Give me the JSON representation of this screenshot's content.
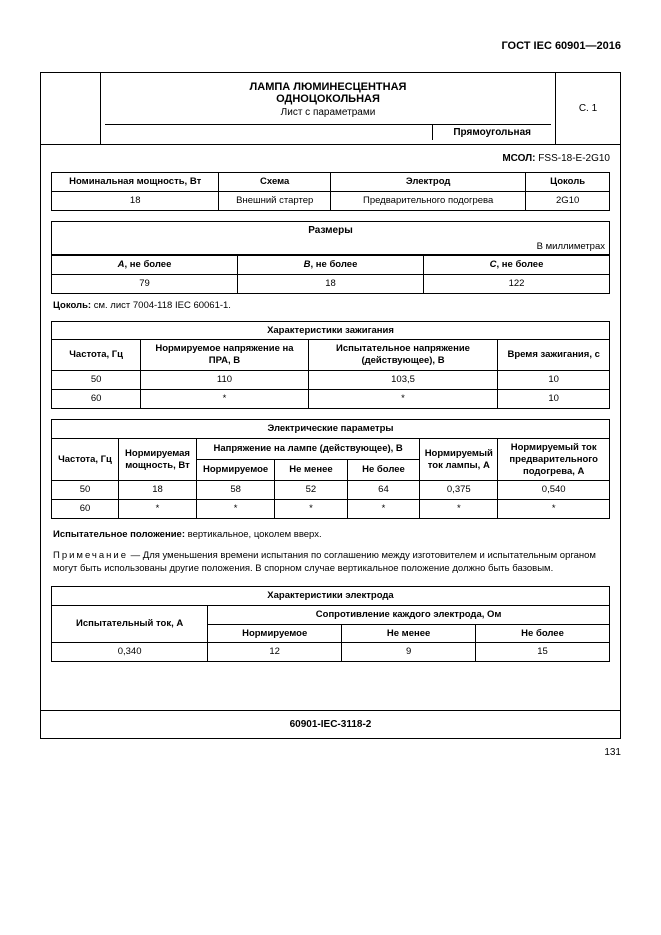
{
  "header": {
    "doc_id": "ГОСТ IEC 60901—2016"
  },
  "title": {
    "line1": "ЛАМПА ЛЮМИНЕСЦЕНТНАЯ",
    "line2": "ОДНОЦОКОЛЬНАЯ",
    "sheet": "Лист с параметрами",
    "shape": "Прямоугольная",
    "page_ref": "С. 1"
  },
  "msol": {
    "label": "МСОЛ:",
    "value": "FSS-18-E-2G10"
  },
  "table1": {
    "columns": [
      "Номинальная мощность, Вт",
      "Схема",
      "Электрод",
      "Цоколь"
    ],
    "rows": [
      [
        "18",
        "Внешний стартер",
        "Предварительного подогрева",
        "2G10"
      ]
    ],
    "col_widths": [
      "30%",
      "20%",
      "35%",
      "15%"
    ]
  },
  "dimensions": {
    "title": "Размеры",
    "unit": "В миллиметрах",
    "columns": [
      "A, не более",
      "B, не более",
      "C, не более"
    ],
    "rows": [
      [
        "79",
        "18",
        "122"
      ]
    ]
  },
  "base_note": {
    "label": "Цоколь:",
    "text": "см. лист 7004-118 IEC 60061-1."
  },
  "ignition": {
    "title": "Характеристики зажигания",
    "columns": [
      "Частота, Гц",
      "Нормируемое напряжение на ПРА, В",
      "Испытательное напряжение (действующее), В",
      "Время зажигания, с"
    ],
    "rows": [
      [
        "50",
        "110",
        "103,5",
        "10"
      ],
      [
        "60",
        "*",
        "*",
        "10"
      ]
    ],
    "col_widths": [
      "16%",
      "30%",
      "34%",
      "20%"
    ]
  },
  "electrical": {
    "title": "Электрические параметры",
    "col_freq": "Частота, Гц",
    "col_power": "Нормируемая мощность, Вт",
    "voltage_header": "Напряжение на лампе (действующее), В",
    "voltage_sub": [
      "Нормируемое",
      "Не менее",
      "Не более"
    ],
    "col_current": "Нормируемый ток лампы, А",
    "col_preheat": "Нормируемый ток предварительного подогрева, А",
    "rows": [
      [
        "50",
        "18",
        "58",
        "52",
        "64",
        "0,375",
        "0,540"
      ],
      [
        "60",
        "*",
        "*",
        "*",
        "*",
        "*",
        "*"
      ]
    ],
    "col_widths": [
      "12%",
      "14%",
      "14%",
      "13%",
      "13%",
      "14%",
      "20%"
    ]
  },
  "position": {
    "label": "Испытательное положение:",
    "text": "вертикальное, цоколем вверх."
  },
  "note": {
    "label": "Примечание",
    "text": "— Для уменьшения времени испытания по соглашению между изготовителем и испытательным органом могут быть использованы другие положения. В спорном случае вертикальное положение должно быть базовым."
  },
  "electrode": {
    "title": "Характеристики электрода",
    "col_current": "Испытательный ток, А",
    "resistance_header": "Сопротивление каждого электрода, Ом",
    "sub": [
      "Нормируемое",
      "Не менее",
      "Не более"
    ],
    "rows": [
      [
        "0,340",
        "12",
        "9",
        "15"
      ]
    ],
    "col_widths": [
      "28%",
      "24%",
      "24%",
      "24%"
    ]
  },
  "footer": {
    "code": "60901-IEC-3118-2"
  },
  "page_number": "131",
  "colors": {
    "background": "#ffffff",
    "border": "#000000",
    "text": "#000000"
  }
}
